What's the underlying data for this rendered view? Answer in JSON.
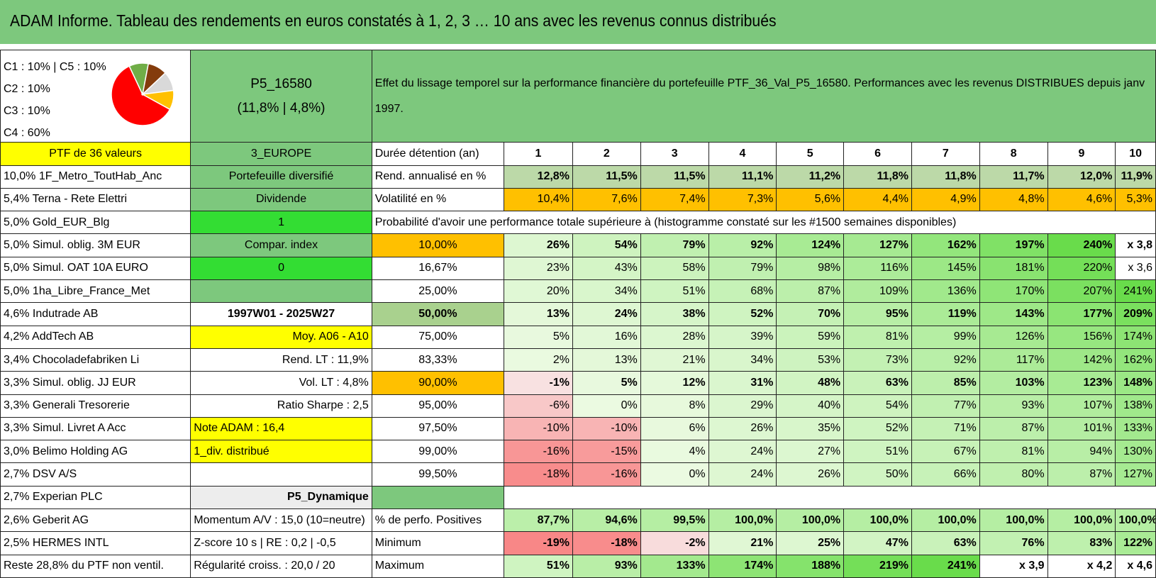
{
  "title": "ADAM Informe. Tableau des rendements en euros constatés à 1, 2, 3 … 10 ans avec les revenus connus distribués",
  "pie": {
    "labels": [
      "C1 : 10% | C5 : 10%",
      "C2 : 10%",
      "C3 : 10%",
      "C4 : 60%"
    ],
    "colors": [
      "#ff0000",
      "#70ad47",
      "#843c0c",
      "#d9d9d9",
      "#ffc000"
    ]
  },
  "portfolio": {
    "name": "P5_16580",
    "stats": "(11,8% | 4,8%)"
  },
  "header_text": "Effet du lissage temporel sur la performance financière du portefeuille PTF_36_Val_P5_16580. Performances avec les revenus DISTRIBUES depuis janv 1997.",
  "holdings": [
    "PTF de 36 valeurs",
    "10,0% 1F_Metro_ToutHab_Anc",
    "5,4% Terna - Rete Elettri",
    "5,0% Gold_EUR_Blg",
    "5,0% Simul. oblig. 3M EUR",
    "5,0% Simul. OAT 10A EURO",
    "5,0% 1ha_Libre_France_Met",
    "4,6% Indutrade AB",
    "4,2% AddTech AB",
    "3,4% Chocoladefabriken Li",
    "3,3% Simul. oblig. JJ EUR",
    "3,3% Generali Tresorerie",
    "3,3% Simul. Livret A Acc",
    "3,0% Belimo Holding AG",
    "2,7% DSV A/S",
    "2,7% Experian PLC",
    "2,6% Geberit AG",
    "2,5% HERMES INTL",
    "Reste 28,8% du PTF non ventil."
  ],
  "info": [
    "3_EUROPE",
    "Portefeuille diversifié",
    "Dividende",
    "1",
    "Compar. index",
    "0",
    "",
    "1997W01 - 2025W27",
    "Moy. A06 - A10",
    "Rend. LT : 11,9%",
    "Vol. LT : 4,8%",
    "Ratio Sharpe : 2,5",
    "Note ADAM : 16,4",
    "1_div. distribué",
    "",
    "P5_Dynamique",
    "Momentum A/V : 15,0 (10=neutre)",
    "Z-score 10 s | RE : 0,2 | -0,5",
    "Régularité croiss. : 20,0 / 20"
  ],
  "duration_label": "Durée détention (an)",
  "years": [
    "1",
    "2",
    "3",
    "4",
    "5",
    "6",
    "7",
    "8",
    "9",
    "10"
  ],
  "rend_label": "Rend. annualisé en %",
  "rend": [
    "12,8%",
    "11,5%",
    "11,5%",
    "11,1%",
    "11,2%",
    "11,8%",
    "11,8%",
    "11,7%",
    "12,0%",
    "11,9%"
  ],
  "vol_label": "Volatilité en %",
  "vol": [
    "10,4%",
    "7,6%",
    "7,4%",
    "7,3%",
    "5,6%",
    "4,4%",
    "4,9%",
    "4,8%",
    "4,6%",
    "5,3%"
  ],
  "prob_title": "Probabilité d'avoir une performance totale supérieure à (histogramme constaté sur les #1500 semaines disponibles)",
  "prob_rows": [
    {
      "p": "10,00%",
      "v": [
        "26%",
        "54%",
        "79%",
        "92%",
        "124%",
        "127%",
        "162%",
        "197%",
        "240%",
        "x 3,8"
      ]
    },
    {
      "p": "16,67%",
      "v": [
        "23%",
        "43%",
        "58%",
        "79%",
        "98%",
        "116%",
        "145%",
        "181%",
        "220%",
        "x 3,6"
      ]
    },
    {
      "p": "25,00%",
      "v": [
        "20%",
        "34%",
        "51%",
        "68%",
        "87%",
        "109%",
        "136%",
        "170%",
        "207%",
        "241%"
      ]
    },
    {
      "p": "50,00%",
      "v": [
        "13%",
        "24%",
        "38%",
        "52%",
        "70%",
        "95%",
        "119%",
        "143%",
        "177%",
        "209%"
      ]
    },
    {
      "p": "75,00%",
      "v": [
        "5%",
        "16%",
        "28%",
        "39%",
        "59%",
        "81%",
        "99%",
        "126%",
        "156%",
        "174%"
      ]
    },
    {
      "p": "83,33%",
      "v": [
        "2%",
        "13%",
        "21%",
        "34%",
        "53%",
        "73%",
        "92%",
        "117%",
        "142%",
        "162%"
      ]
    },
    {
      "p": "90,00%",
      "v": [
        "-1%",
        "5%",
        "12%",
        "31%",
        "48%",
        "63%",
        "85%",
        "103%",
        "123%",
        "148%"
      ]
    },
    {
      "p": "95,00%",
      "v": [
        "-6%",
        "0%",
        "8%",
        "29%",
        "40%",
        "54%",
        "77%",
        "93%",
        "107%",
        "138%"
      ]
    },
    {
      "p": "97,50%",
      "v": [
        "-10%",
        "-10%",
        "6%",
        "26%",
        "35%",
        "52%",
        "71%",
        "87%",
        "101%",
        "133%"
      ]
    },
    {
      "p": "99,00%",
      "v": [
        "-16%",
        "-15%",
        "4%",
        "24%",
        "27%",
        "51%",
        "67%",
        "81%",
        "94%",
        "130%"
      ]
    },
    {
      "p": "99,50%",
      "v": [
        "-18%",
        "-16%",
        "0%",
        "24%",
        "26%",
        "50%",
        "66%",
        "80%",
        "87%",
        "127%"
      ]
    }
  ],
  "pos_label": "% de perfo. Positives",
  "pos": [
    "87,7%",
    "94,6%",
    "99,5%",
    "100,0%",
    "100,0%",
    "100,0%",
    "100,0%",
    "100,0%",
    "100,0%",
    "100,0%"
  ],
  "min_label": "Minimum",
  "min": [
    "-19%",
    "-18%",
    "-2%",
    "21%",
    "25%",
    "47%",
    "63%",
    "76%",
    "83%",
    "122%"
  ],
  "max_label": "Maximum",
  "max": [
    "51%",
    "93%",
    "133%",
    "174%",
    "188%",
    "219%",
    "241%",
    "x 3,9",
    "x 4,2",
    "x 4,6"
  ]
}
